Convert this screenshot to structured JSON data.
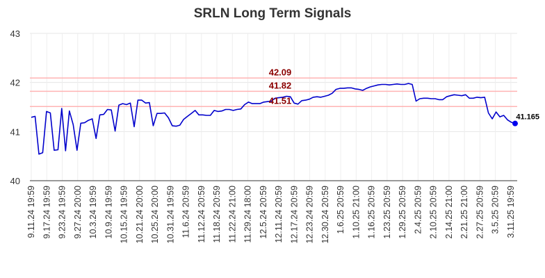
{
  "chart_data": {
    "type": "line",
    "title": "SRLN Long Term Signals",
    "xlabel": "",
    "ylabel": "",
    "ylim": [
      40,
      43
    ],
    "yticks": [
      40,
      41,
      42,
      43
    ],
    "grid": true,
    "x_tick_labels": [
      "9.11.24 19:59",
      "9.17.24 19:59",
      "9.23.24 19:59",
      "9.27.24 20:00",
      "10.3.24 19:59",
      "10.9.24 19:59",
      "10.15.24 19:59",
      "10.21.24 20:00",
      "10.25.24 20:00",
      "10.31.24 19:59",
      "11.6.24 20:59",
      "11.12.24 20:59",
      "11.18.24 20:59",
      "11.22.24 21:00",
      "11.29.24 18:00",
      "12.5.24 20:59",
      "12.11.24 20:59",
      "12.17.24 20:59",
      "12.23.24 20:59",
      "12.30.24 20:59",
      "1.6.25 20:59",
      "1.10.25 21:00",
      "1.16.25 20:59",
      "1.23.25 20:59",
      "1.29.25 20:59",
      "2.4.25 20:59",
      "2.10.25 20:59",
      "2.14.25 21:00",
      "2.21.25 21:00",
      "2.27.25 20:59",
      "3.5.25 20:59",
      "3.11.25 19:59"
    ],
    "series": [
      {
        "color": "#0000cc",
        "values": [
          41.29,
          41.31,
          40.54,
          40.57,
          41.41,
          41.38,
          40.62,
          40.63,
          41.47,
          40.61,
          41.42,
          41.14,
          40.62,
          41.17,
          41.18,
          41.23,
          41.26,
          40.86,
          41.34,
          41.35,
          41.45,
          41.44,
          41.01,
          41.54,
          41.57,
          41.55,
          41.58,
          41.1,
          41.64,
          41.64,
          41.58,
          41.59,
          41.12,
          41.37,
          41.37,
          41.38,
          41.28,
          41.12,
          41.11,
          41.13,
          41.25,
          41.31,
          41.37,
          41.43,
          41.34,
          41.34,
          41.33,
          41.33,
          41.43,
          41.41,
          41.42,
          41.45,
          41.45,
          41.43,
          41.45,
          41.46,
          41.55,
          41.6,
          41.57,
          41.57,
          41.57,
          41.6,
          41.61,
          41.62,
          41.68,
          41.69,
          41.7,
          41.72,
          41.71,
          41.58,
          41.56,
          41.63,
          41.64,
          41.66,
          41.7,
          41.71,
          41.7,
          41.72,
          41.74,
          41.78,
          41.86,
          41.88,
          41.88,
          41.89,
          41.89,
          41.87,
          41.86,
          41.84,
          41.88,
          41.91,
          41.93,
          41.95,
          41.96,
          41.96,
          41.95,
          41.96,
          41.97,
          41.96,
          41.96,
          41.98,
          41.96,
          41.62,
          41.67,
          41.68,
          41.68,
          41.67,
          41.67,
          41.65,
          41.65,
          41.71,
          41.73,
          41.75,
          41.74,
          41.73,
          41.75,
          41.68,
          41.68,
          41.7,
          41.69,
          41.7,
          41.38,
          41.26,
          41.4,
          41.3,
          41.33,
          41.24,
          41.19,
          41.165
        ]
      }
    ],
    "horizontal_lines": [
      {
        "value": 42.09,
        "label": "42.09",
        "color": "#ffb3b3"
      },
      {
        "value": 41.82,
        "label": "41.82",
        "color": "#ffb3b3"
      },
      {
        "value": 41.51,
        "label": "41.51",
        "color": "#ffb3b3"
      }
    ],
    "last_value_label": "41.165",
    "last_point_color": "#0000ee"
  }
}
